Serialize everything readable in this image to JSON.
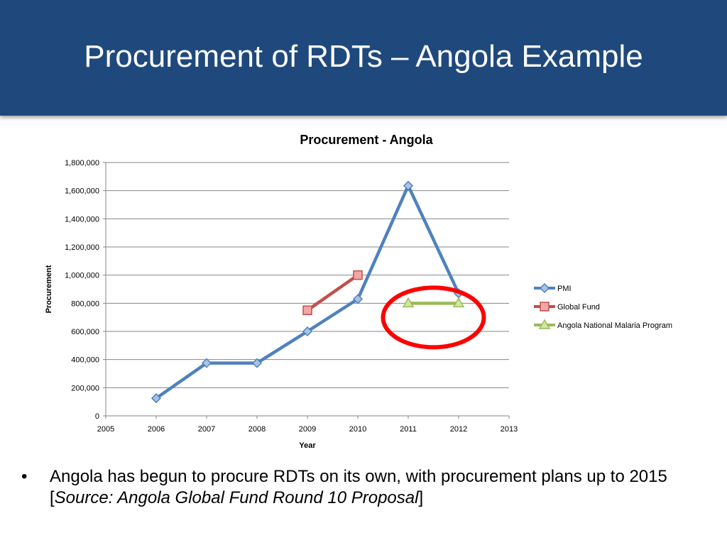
{
  "slide": {
    "title": "Procurement of RDTs – Angola Example"
  },
  "chart_data": {
    "type": "line",
    "title": "Procurement - Angola",
    "xlabel": "Year",
    "ylabel": "Procurement",
    "xlim": [
      2005,
      2013
    ],
    "ylim": [
      0,
      1800000
    ],
    "x_ticks": [
      2005,
      2006,
      2007,
      2008,
      2009,
      2010,
      2011,
      2012,
      2013
    ],
    "y_ticks": [
      0,
      200000,
      400000,
      600000,
      800000,
      1000000,
      1200000,
      1400000,
      1600000,
      1800000
    ],
    "y_tick_labels": [
      "0",
      "200,000",
      "400,000",
      "600,000",
      "800,000",
      "1,000,000",
      "1,200,000",
      "1,400,000",
      "1,600,000",
      "1,800,000"
    ],
    "grid": true,
    "legend_position": "right",
    "series": [
      {
        "name": "PMI",
        "color": "#4f81bd",
        "marker": "diamond",
        "points": [
          [
            2006,
            125000
          ],
          [
            2007,
            375000
          ],
          [
            2008,
            375000
          ],
          [
            2009,
            600000
          ],
          [
            2010,
            830000
          ],
          [
            2011,
            1635000
          ],
          [
            2012,
            870000
          ]
        ]
      },
      {
        "name": "Global Fund",
        "color": "#c0504d",
        "marker": "square",
        "points": [
          [
            2009,
            750000
          ],
          [
            2010,
            1000000
          ]
        ]
      },
      {
        "name": "Angola National Malaria Program",
        "color": "#9bbb59",
        "marker": "triangle",
        "points": [
          [
            2011,
            800000
          ],
          [
            2012,
            800000
          ]
        ]
      }
    ],
    "annotations": [
      {
        "type": "ellipse-highlight",
        "color": "#ff0000",
        "around_series": "Angola National Malaria Program"
      }
    ]
  },
  "bullets": [
    {
      "marker": "•",
      "text_before": "Angola has begun to procure RDTs on its own, with procurement plans up to 2015 [",
      "source_text": "Source: Angola Global Fund Round 10 Proposal",
      "text_after": "]"
    }
  ]
}
